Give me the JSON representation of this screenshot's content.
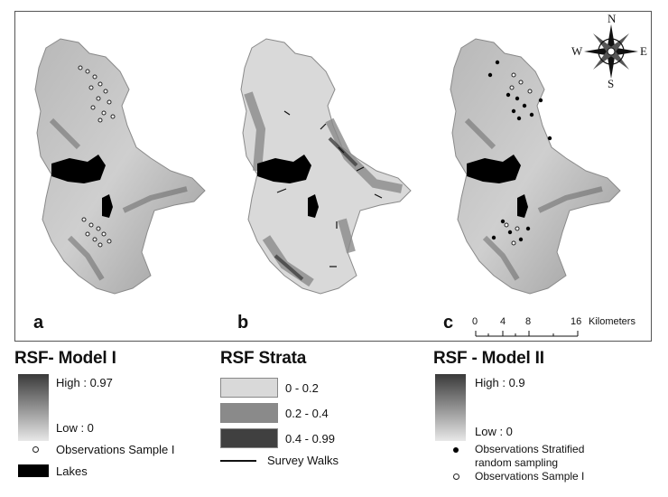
{
  "panels": [
    {
      "label": "a",
      "map": "RSF - Model I"
    },
    {
      "label": "b",
      "map": "RSF Strata"
    },
    {
      "label": "c",
      "map": "RSF - Model II"
    }
  ],
  "compass": {
    "n": "N",
    "s": "S",
    "e": "E",
    "w": "W"
  },
  "scale": {
    "ticks": [
      "0",
      "4",
      "8",
      "16"
    ],
    "unit": "Kilometers"
  },
  "legend_model1": {
    "title": "RSF- Model I",
    "high": "High : 0.97",
    "low": "Low : 0",
    "observations": "Observations Sample I",
    "lakes": "Lakes"
  },
  "legend_strata": {
    "title": "RSF Strata",
    "classes": [
      {
        "label": "0 - 0.2",
        "color": "#d9d9d9"
      },
      {
        "label": "0.2 - 0.4",
        "color": "#8a8a8a"
      },
      {
        "label": "0.4 - 0.99",
        "color": "#404040"
      }
    ],
    "survey": "Survey Walks"
  },
  "legend_model2": {
    "title": "RSF - Model II",
    "high": "High : 0.9",
    "low": "Low : 0",
    "obs_stratified_1": "Observations Stratified",
    "obs_stratified_2": "random sampling",
    "obs_sample": "Observations Sample I"
  },
  "colors": {
    "lake": "#000000",
    "terrain_high": "#3a3a3a",
    "terrain_low": "#e8e8e8"
  }
}
